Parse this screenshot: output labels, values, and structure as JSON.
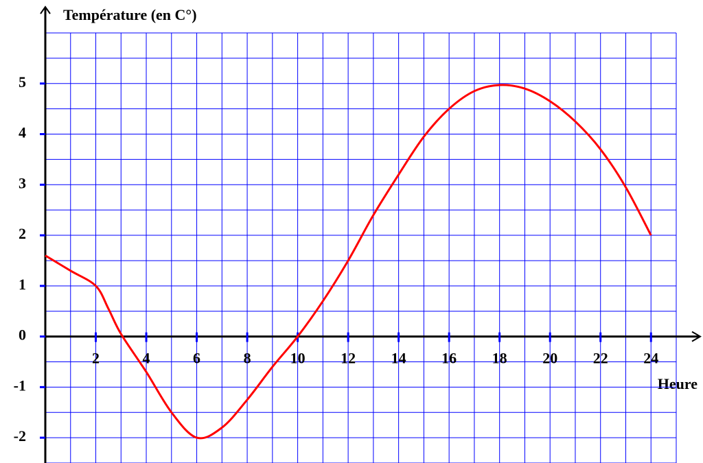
{
  "chart_data": {
    "type": "line",
    "title": "Température (en C°)",
    "x_label": "Heure",
    "x": [
      0,
      1,
      2,
      2.5,
      3,
      4,
      5,
      6,
      7,
      8,
      9,
      10,
      11,
      12,
      13,
      14,
      15,
      16,
      17,
      18,
      19,
      20,
      21,
      22,
      23,
      24
    ],
    "series": [
      {
        "name": "Température",
        "color": "#ff0000",
        "values": [
          1.6,
          1.3,
          1.0,
          0.55,
          0.05,
          -0.7,
          -1.5,
          -2.0,
          -1.8,
          -1.25,
          -0.6,
          0,
          0.7,
          1.5,
          2.4,
          3.2,
          3.95,
          4.5,
          4.85,
          4.97,
          4.9,
          4.65,
          4.25,
          3.7,
          2.95,
          2.0
        ]
      }
    ],
    "xlim": [
      0,
      25
    ],
    "ylim": [
      -2.5,
      6
    ],
    "xticks": [
      2,
      4,
      6,
      8,
      10,
      12,
      14,
      16,
      18,
      20,
      22,
      24
    ],
    "yticks": [
      -2,
      -1,
      0,
      1,
      2,
      3,
      4,
      5
    ],
    "grid": true,
    "grid_color": "#0000ff",
    "tick_color": "#0000ff"
  }
}
